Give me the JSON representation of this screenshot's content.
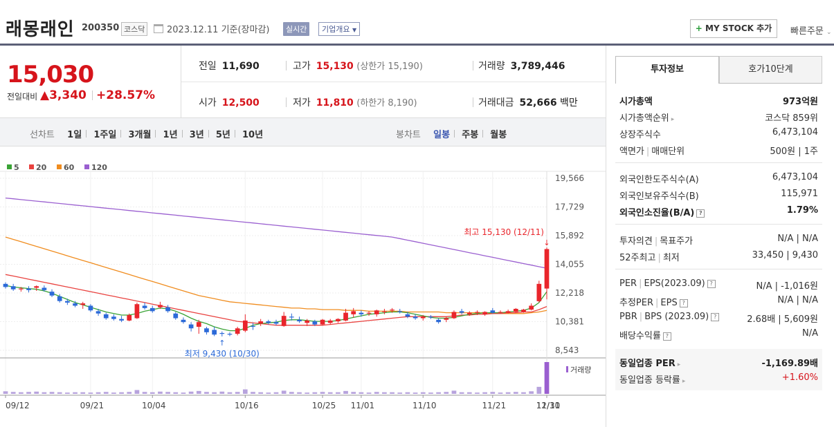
{
  "header": {
    "company": "래몽래인",
    "code": "200350",
    "market": "코스닥",
    "date_text": "2023.12.11  기준(장마감)",
    "realtime": "실시간",
    "company_info": "기업개요",
    "mystock": "MY STOCK 추가",
    "quick_order": "빠른주문"
  },
  "price": {
    "current": "15,030",
    "change_label": "전일대비",
    "change": "▲3,340",
    "rate": "+28.57%"
  },
  "stats": {
    "prev_label": "전일",
    "prev": "11,690",
    "high_label": "고가",
    "high": "15,130",
    "upper_limit": "(상한가 15,190)",
    "volume_label": "거래량",
    "volume": "3,789,446",
    "open_label": "시가",
    "open": "12,500",
    "low_label": "저가",
    "low": "11,810",
    "lower_limit": "(하한가 8,190)",
    "amount_label": "거래대금",
    "amount": "52,666",
    "amount_unit": "백만"
  },
  "periods": {
    "line_label": "선차트",
    "line_items": [
      "1일",
      "1주일",
      "3개월",
      "1년",
      "3년",
      "5년",
      "10년"
    ],
    "candle_label": "봉차트",
    "candle_items": [
      "일봉",
      "주봉",
      "월봉"
    ],
    "candle_selected": "일봉"
  },
  "chart_data": {
    "type": "candlestick",
    "legend": [
      "5",
      "20",
      "60",
      "120"
    ],
    "legend_colors": [
      "#3aa335",
      "#e9423f",
      "#f08c1e",
      "#9a5fd0"
    ],
    "y_ticks": [
      "19,566",
      "17,729",
      "15,892",
      "14,055",
      "12,218",
      "10,381",
      "8,543"
    ],
    "ylim": [
      8543,
      19566
    ],
    "x_labels": [
      "09/12",
      "09/21",
      "10/04",
      "10/16",
      "10/25",
      "11/01",
      "11/10",
      "11/21",
      "11/30",
      "12/11"
    ],
    "max_annotation": "최고 15,130 (12/11)",
    "min_annotation": "최저 9,430 (10/30)",
    "volume_label": "거래량",
    "candles": [
      [
        12800,
        12900,
        12500,
        12600
      ],
      [
        12650,
        12800,
        12350,
        12450
      ],
      [
        12450,
        12600,
        12300,
        12500
      ],
      [
        12500,
        12650,
        12250,
        12400
      ],
      [
        12550,
        12700,
        12350,
        12650
      ],
      [
        12550,
        12700,
        12300,
        12400
      ],
      [
        12300,
        12450,
        11950,
        12050
      ],
      [
        12000,
        12150,
        11600,
        11700
      ],
      [
        11700,
        11850,
        11450,
        11600
      ],
      [
        11550,
        11700,
        11300,
        11400
      ],
      [
        11450,
        11650,
        11200,
        11550
      ],
      [
        11400,
        11500,
        11000,
        11100
      ],
      [
        11050,
        11200,
        10750,
        10900
      ],
      [
        10850,
        10950,
        10500,
        10600
      ],
      [
        10700,
        10850,
        10450,
        10550
      ],
      [
        10550,
        10750,
        10350,
        10450
      ],
      [
        10450,
        10900,
        10400,
        10800
      ],
      [
        10600,
        11600,
        10550,
        11500
      ],
      [
        11400,
        11600,
        11150,
        11250
      ],
      [
        11250,
        11400,
        10950,
        11050
      ],
      [
        11300,
        11650,
        11200,
        11450
      ],
      [
        11300,
        11450,
        10950,
        11050
      ],
      [
        10900,
        11000,
        10500,
        10600
      ],
      [
        10500,
        10650,
        10250,
        10350
      ],
      [
        10200,
        10350,
        9750,
        9950
      ],
      [
        10050,
        10500,
        9600,
        10350
      ],
      [
        9950,
        10050,
        9550,
        9700
      ],
      [
        9850,
        10050,
        9450,
        9550
      ],
      [
        9650,
        9750,
        9430,
        9600
      ],
      [
        9600,
        9700,
        9450,
        9550
      ],
      [
        9600,
        10050,
        9500,
        9950
      ],
      [
        9800,
        10850,
        9700,
        10450
      ],
      [
        10100,
        10300,
        9850,
        10050
      ],
      [
        10250,
        10550,
        10100,
        10400
      ],
      [
        10400,
        10500,
        10200,
        10300
      ],
      [
        10350,
        10500,
        10150,
        10250
      ],
      [
        10100,
        11000,
        10050,
        10750
      ],
      [
        10700,
        10900,
        10450,
        10650
      ],
      [
        10500,
        10700,
        10300,
        10400
      ],
      [
        10300,
        10550,
        10100,
        10450
      ],
      [
        10400,
        10500,
        10100,
        10200
      ],
      [
        10200,
        10550,
        10150,
        10500
      ],
      [
        10300,
        10550,
        10200,
        10450
      ],
      [
        10400,
        10600,
        10300,
        10550
      ],
      [
        10450,
        11200,
        10400,
        10950
      ],
      [
        10850,
        11250,
        10650,
        11050
      ],
      [
        10950,
        11100,
        10700,
        10850
      ],
      [
        10900,
        11050,
        10750,
        10950
      ],
      [
        10850,
        11150,
        10700,
        11100
      ],
      [
        11000,
        11200,
        10850,
        11050
      ],
      [
        11100,
        11250,
        10950,
        11150
      ],
      [
        11050,
        11200,
        10900,
        11000
      ],
      [
        10850,
        11000,
        10600,
        10700
      ],
      [
        10700,
        10850,
        10500,
        10600
      ],
      [
        10600,
        10800,
        10450,
        10700
      ],
      [
        10700,
        10800,
        10550,
        10650
      ],
      [
        10500,
        10600,
        10250,
        10350
      ],
      [
        10500,
        10700,
        10350,
        10600
      ],
      [
        10600,
        11100,
        10550,
        11000
      ],
      [
        11050,
        11200,
        10850,
        10950
      ],
      [
        10850,
        11050,
        10750,
        10950
      ],
      [
        10950,
        11100,
        10800,
        11000
      ],
      [
        10850,
        11050,
        10750,
        11000
      ],
      [
        11100,
        11250,
        10900,
        10950
      ],
      [
        10950,
        11100,
        10900,
        11000
      ],
      [
        10950,
        11150,
        10900,
        11050
      ],
      [
        11000,
        11250,
        10950,
        11200
      ],
      [
        11000,
        11200,
        10950,
        11150
      ],
      [
        11150,
        11550,
        11100,
        11400
      ],
      [
        11690,
        13000,
        11600,
        12800
      ],
      [
        12500,
        15130,
        11810,
        15030
      ]
    ],
    "ma5": [
      12700,
      12600,
      12550,
      12500,
      12450,
      12350,
      12200,
      12000,
      11800,
      11600,
      11450,
      11300,
      11150,
      11000,
      10900,
      10800,
      10800,
      10900,
      11050,
      11150,
      11250,
      11200,
      11050,
      10850,
      10600,
      10400,
      10250,
      10050,
      9900,
      9800,
      9800,
      9950,
      10150,
      10250,
      10300,
      10350,
      10450,
      10500,
      10500,
      10450,
      10400,
      10400,
      10400,
      10450,
      10550,
      10650,
      10750,
      10850,
      10900,
      10950,
      11000,
      11000,
      10950,
      10850,
      10750,
      10650,
      10600,
      10600,
      10650,
      10750,
      10850,
      10900,
      10950,
      10950,
      10950,
      11000,
      11050,
      11100,
      11250,
      11600,
      12300
    ],
    "ma20": [
      13400,
      13300,
      13200,
      13100,
      13000,
      12900,
      12800,
      12700,
      12600,
      12500,
      12400,
      12300,
      12200,
      12100,
      12000,
      11900,
      11800,
      11700,
      11600,
      11500,
      11400,
      11300,
      11200,
      11100,
      11000,
      10900,
      10800,
      10700,
      10600,
      10500,
      10400,
      10350,
      10300,
      10250,
      10200,
      10150,
      10150,
      10150,
      10150,
      10150,
      10150,
      10150,
      10200,
      10250,
      10300,
      10350,
      10400,
      10450,
      10500,
      10550,
      10600,
      10650,
      10700,
      10700,
      10700,
      10700,
      10700,
      10700,
      10750,
      10800,
      10800,
      10850,
      10850,
      10900,
      10900,
      10950,
      10950,
      11000,
      11000,
      11150,
      11350
    ],
    "ma60": [
      15800,
      15650,
      15500,
      15350,
      15200,
      15050,
      14900,
      14750,
      14600,
      14450,
      14300,
      14150,
      14000,
      13850,
      13700,
      13550,
      13400,
      13250,
      13100,
      12950,
      12800,
      12650,
      12500,
      12350,
      12200,
      12050,
      11950,
      11850,
      11750,
      11650,
      11600,
      11550,
      11500,
      11450,
      11400,
      11350,
      11300,
      11250,
      11250,
      11200,
      11200,
      11150,
      11150,
      11150,
      11100,
      11100,
      11100,
      11050,
      11050,
      11050,
      11050,
      11050,
      11000,
      11000,
      11000,
      11000,
      11000,
      10950,
      10950,
      10950,
      10950,
      10950,
      10950,
      10900,
      10900,
      10900,
      10900,
      10900,
      10950,
      11000,
      11100
    ],
    "ma120": [
      18300,
      18250,
      18200,
      18150,
      18100,
      18050,
      18000,
      17950,
      17900,
      17850,
      17800,
      17750,
      17700,
      17650,
      17600,
      17550,
      17500,
      17450,
      17400,
      17350,
      17300,
      17250,
      17200,
      17150,
      17100,
      17050,
      17000,
      16950,
      16900,
      16850,
      16800,
      16750,
      16700,
      16650,
      16600,
      16550,
      16500,
      16450,
      16400,
      16350,
      16300,
      16250,
      16200,
      16150,
      16100,
      16050,
      16000,
      15950,
      15900,
      15850,
      15800,
      15700,
      15600,
      15500,
      15400,
      15300,
      15200,
      15100,
      15000,
      14900,
      14800,
      14700,
      14600,
      14500,
      14400,
      14300,
      14200,
      14100,
      14000,
      13900,
      13800
    ],
    "volumes": [
      8,
      6,
      5,
      6,
      7,
      5,
      6,
      5,
      4,
      5,
      5,
      4,
      5,
      6,
      4,
      5,
      6,
      12,
      6,
      5,
      7,
      6,
      5,
      4,
      7,
      9,
      6,
      5,
      7,
      5,
      6,
      14,
      6,
      5,
      4,
      5,
      10,
      6,
      5,
      4,
      5,
      6,
      5,
      5,
      9,
      6,
      5,
      4,
      6,
      5,
      5,
      4,
      5,
      4,
      5,
      4,
      5,
      6,
      10,
      5,
      5,
      4,
      5,
      6,
      4,
      5,
      6,
      5,
      8,
      22,
      100
    ]
  },
  "tabs": [
    "투자정보",
    "호가10단계"
  ],
  "invest": {
    "market_cap_label": "시가총액",
    "market_cap": "973억원",
    "cap_rank_label": "시가총액순위",
    "cap_rank": "코스닥 859위",
    "shares_label": "상장주식수",
    "shares": "6,473,104",
    "par_label": "액면가",
    "unit_label": "매매단위",
    "par_unit": "500원 | 1주",
    "foreign_limit_label": "외국인한도주식수(A)",
    "foreign_limit": "6,473,104",
    "foreign_hold_label": "외국인보유주식수(B)",
    "foreign_hold": "115,971",
    "foreign_ratio_label": "외국인소진율(B/A)",
    "foreign_ratio": "1.79%",
    "opinion_label": "투자의견",
    "target_label": "목표주가",
    "opinion_target": "N/A | N/A",
    "high52_label": "52주최고",
    "low_label": "최저",
    "high_low52": "33,450 | 9,430",
    "per_label": "PER",
    "eps_label": "EPS(2023.09)",
    "per_eps": "N/A | -1,016원",
    "est_per_label": "추정PER",
    "est_eps_label": "EPS",
    "est_per_eps": "N/A | N/A",
    "pbr_label": "PBR",
    "bps_label": "BPS (2023.09)",
    "pbr_bps": "2.68배 | 5,609원",
    "div_label": "배당수익률",
    "div": "N/A",
    "ind_per_label": "동일업종 PER",
    "ind_per": "-1,169.89배",
    "ind_rate_label": "동일업종 등락률",
    "ind_rate": "+1.60%"
  }
}
